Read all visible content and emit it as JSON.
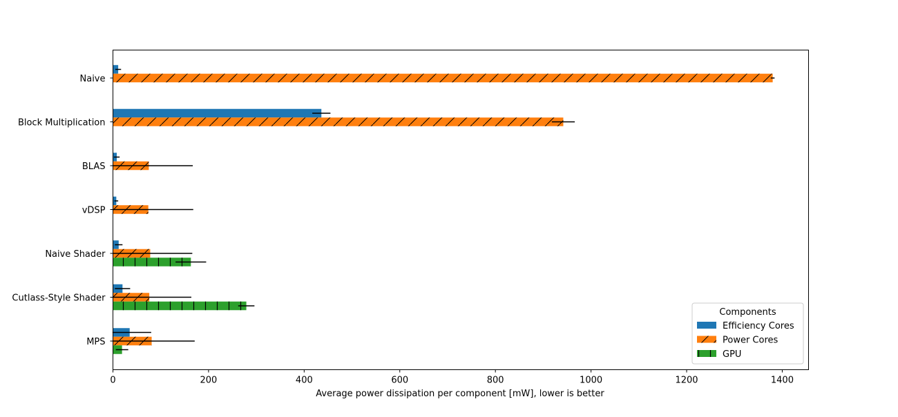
{
  "chart_data": {
    "type": "bar",
    "orientation": "horizontal",
    "categories": [
      "Naive",
      "Block Multiplication",
      "BLAS",
      "vDSP",
      "Naive Shader",
      "Cutlass-Style Shader",
      "MPS"
    ],
    "series": [
      {
        "name": "Efficiency Cores",
        "color": "#1f77b4",
        "hatch": "none",
        "values": [
          11,
          436,
          8,
          7,
          12,
          20,
          35
        ],
        "errors": [
          6,
          19,
          6,
          4,
          8,
          16,
          45
        ]
      },
      {
        "name": "Power Cores",
        "color": "#ff7f0e",
        "hatch": "diagonal",
        "values": [
          1380,
          942,
          75,
          74,
          78,
          76,
          81
        ],
        "errors": [
          4,
          24,
          92,
          94,
          88,
          88,
          90
        ]
      },
      {
        "name": "GPU",
        "color": "#2ca02c",
        "hatch": "vertical",
        "values": [
          0,
          0,
          0,
          0,
          163,
          279,
          19
        ],
        "errors": [
          0,
          0,
          0,
          0,
          32,
          17,
          13
        ]
      }
    ],
    "xlabel": "Average power dissipation per component [mW], lower is better",
    "ylabel": "",
    "xlim": [
      0,
      1455
    ],
    "xticks": [
      0,
      200,
      400,
      600,
      800,
      1000,
      1200,
      1400
    ],
    "grid": false,
    "legend": {
      "title": "Components",
      "placement": "lower-right"
    }
  }
}
